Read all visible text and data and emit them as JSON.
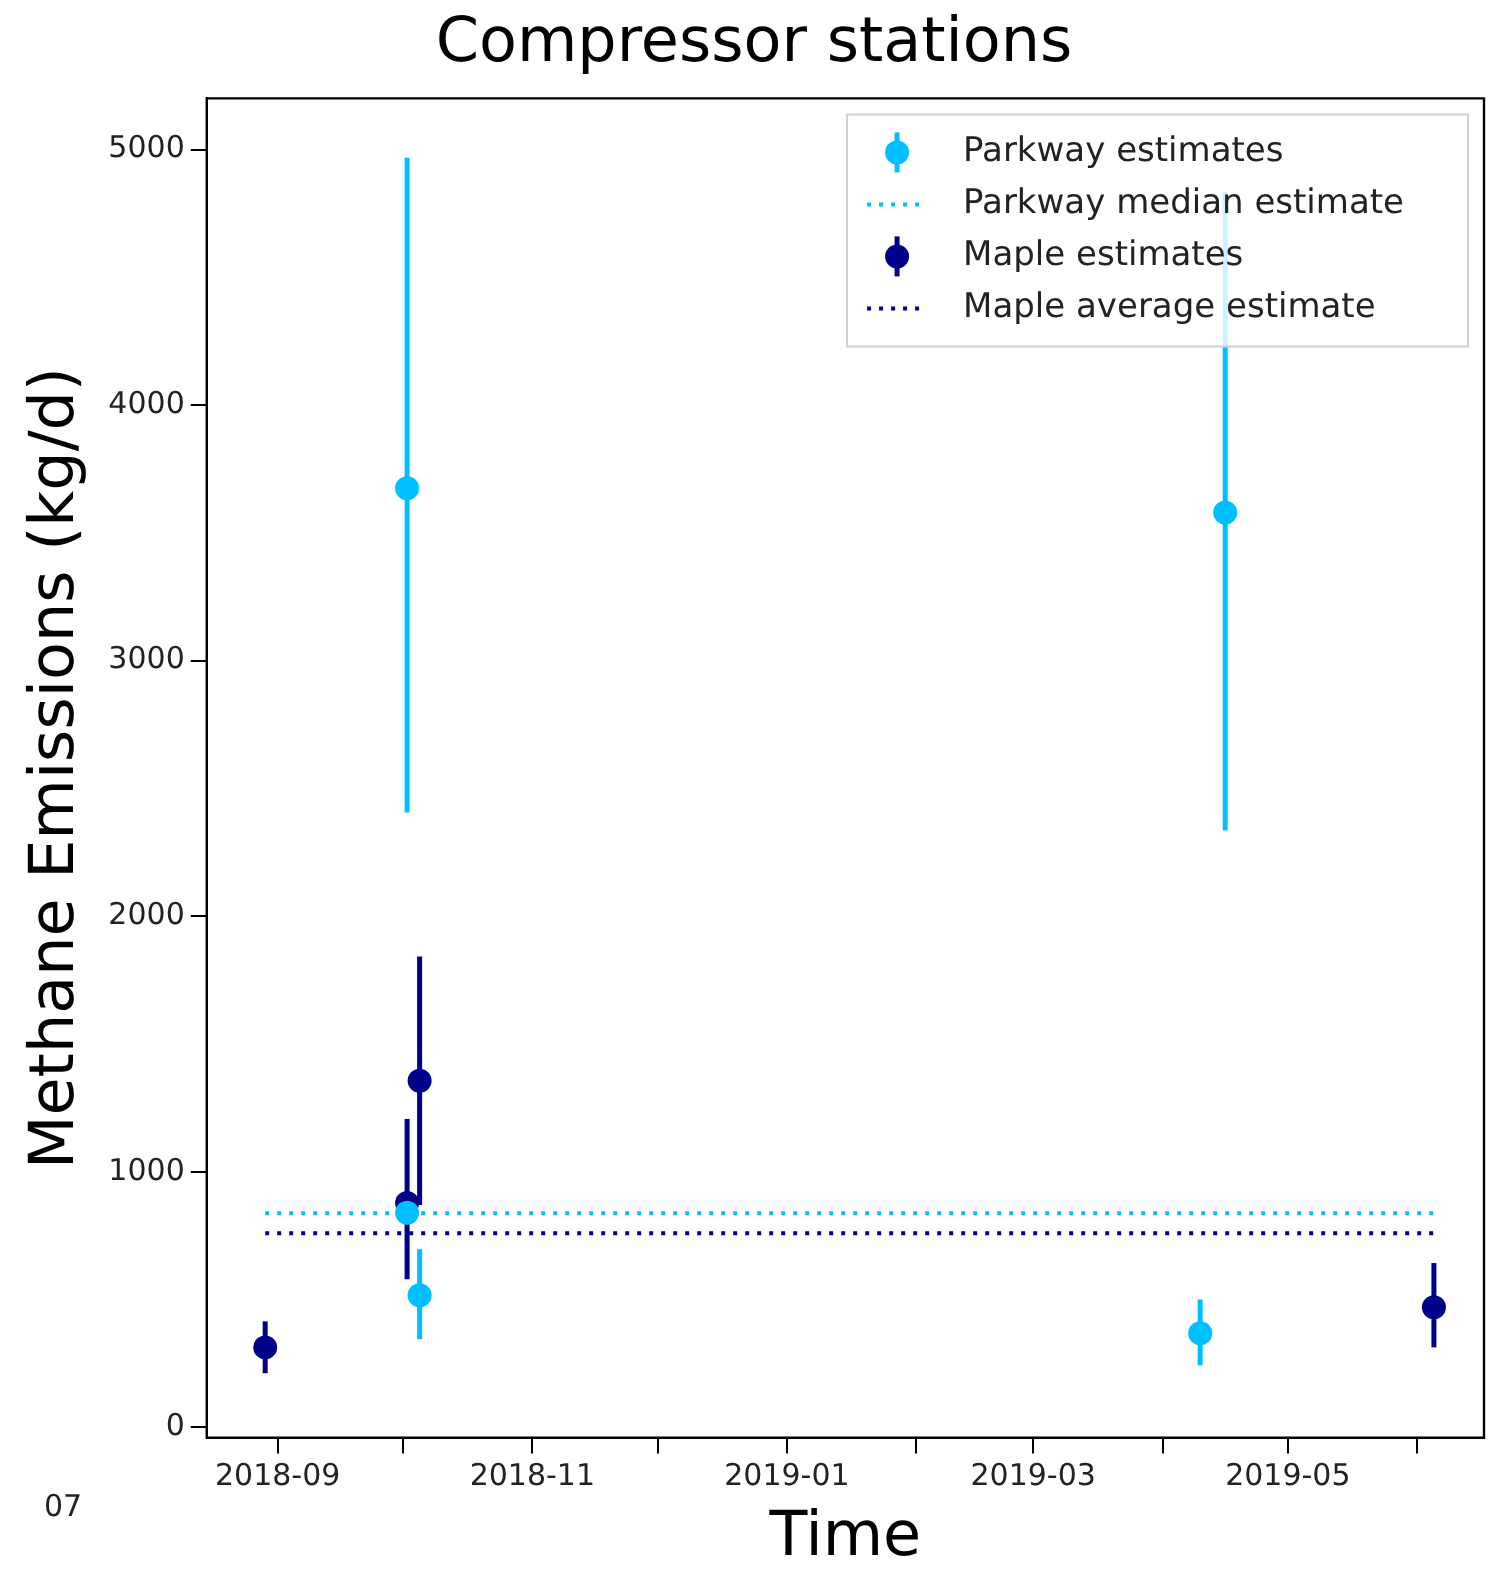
{
  "chart_data": {
    "type": "scatter",
    "title": "Compressor stations",
    "xlabel": "Time",
    "ylabel": "Methane Emissions (kg/d)",
    "xlim": [
      "2018-08-15",
      "2019-06-17"
    ],
    "xticks": [
      "2018-09",
      {
        "value": "2018-10",
        "label": null
      },
      "2018-11",
      {
        "value": "2018-12",
        "label": null
      },
      "2019-01",
      {
        "value": "2019-02",
        "label": null
      },
      "2019-03",
      {
        "value": "2019-04",
        "label": null
      },
      "2019-05",
      {
        "value": "2019-06",
        "label": null
      }
    ],
    "ylim": [
      -40,
      5200
    ],
    "yticks": [
      0,
      1000,
      2000,
      3000,
      4000,
      5000
    ],
    "grid": false,
    "legend": "top right",
    "marker": "circle",
    "annotations": [
      "07"
    ],
    "series": [
      {
        "name": "Parkway estimates",
        "color": "#00bfff",
        "x": [
          "2018-10-02",
          "2018-10-02",
          "2018-10-05",
          "2019-04-10",
          "2019-04-16"
        ],
        "values": [
          3675,
          840,
          517,
          368,
          3580
        ],
        "errors": [
          [
            2406,
            4968
          ],
          null,
          [
            345,
            697
          ],
          [
            243,
            500
          ],
          [
            2335,
            4835
          ]
        ]
      },
      {
        "name": "Parkway median estimate",
        "type": "line",
        "line_style": "dotted",
        "marker": "none",
        "color": "#00bfff",
        "x": [
          "2018-08-29",
          "2019-06-05"
        ],
        "values": [
          838,
          838
        ]
      },
      {
        "name": "Maple estimates",
        "color": "#00008b",
        "x": [
          "2018-08-29",
          "2018-10-02",
          "2018-10-05",
          "2019-06-05"
        ],
        "values": [
          313,
          878,
          1356,
          470
        ],
        "errors": [
          [
            212,
            415
          ],
          [
            580,
            1207
          ],
          [
            870,
            1842
          ],
          [
            313,
            643
          ]
        ]
      },
      {
        "name": "Maple average estimate",
        "type": "line",
        "line_style": "dotted",
        "marker": "none",
        "color": "#00008b",
        "x": [
          "2018-08-29",
          "2019-06-05"
        ],
        "values": [
          760,
          760
        ]
      }
    ]
  }
}
